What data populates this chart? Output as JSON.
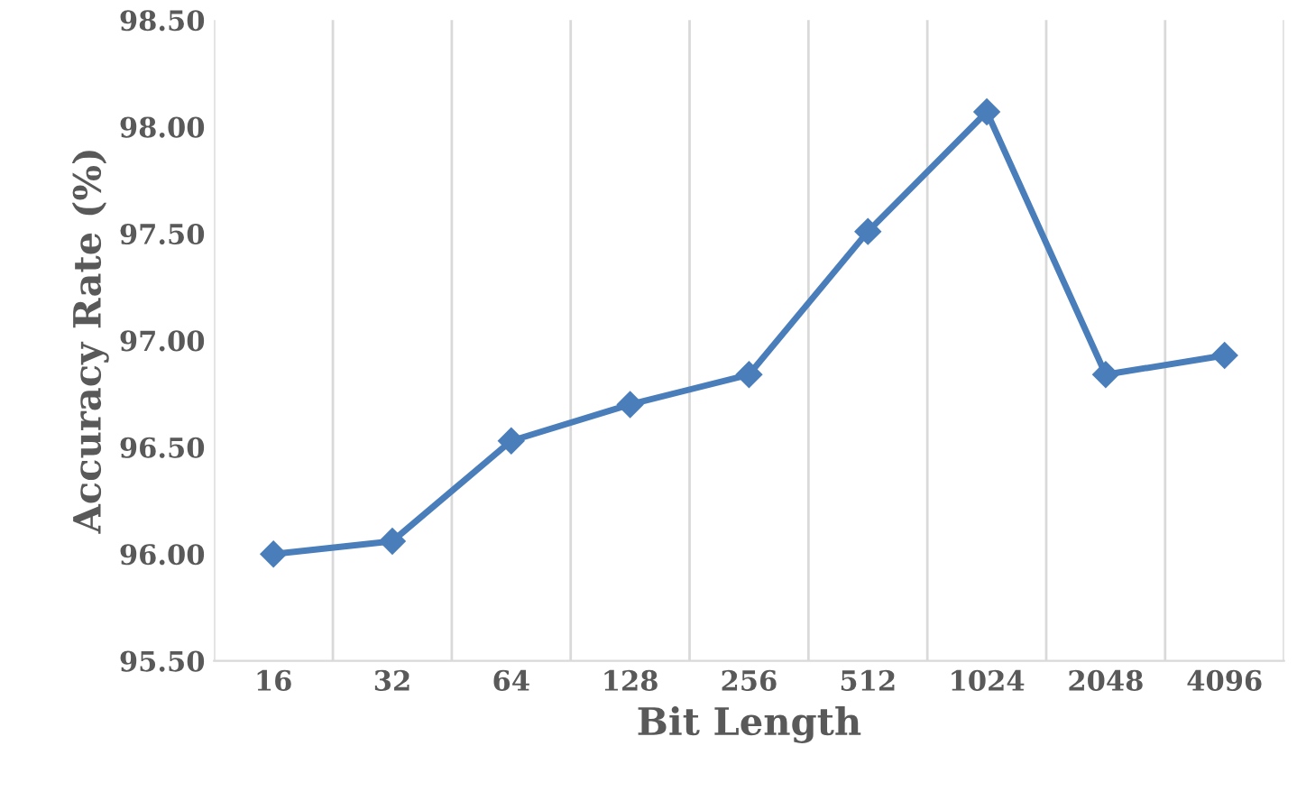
{
  "chart_data": {
    "type": "line",
    "xlabel": "Bit Length",
    "ylabel": "Accuracy Rate (%)",
    "categories": [
      "16",
      "32",
      "64",
      "128",
      "256",
      "512",
      "1024",
      "2048",
      "4096"
    ],
    "series": [
      {
        "color": "#4a7ebb",
        "values": [
          96.0,
          96.06,
          96.53,
          96.7,
          96.84,
          97.51,
          98.07,
          96.84,
          96.93
        ]
      }
    ],
    "ylim": [
      95.5,
      98.5
    ],
    "yticks": [
      {
        "value": 95.5,
        "label": "95.50"
      },
      {
        "value": 96.0,
        "label": "96.00"
      },
      {
        "value": 96.5,
        "label": "96.50"
      },
      {
        "value": 97.0,
        "label": "97.00"
      },
      {
        "value": 97.5,
        "label": "97.50"
      },
      {
        "value": 98.0,
        "label": "98.00"
      },
      {
        "value": 98.5,
        "label": "98.50"
      }
    ],
    "grid": "x",
    "marker": "diamond",
    "line_style": "solid"
  }
}
